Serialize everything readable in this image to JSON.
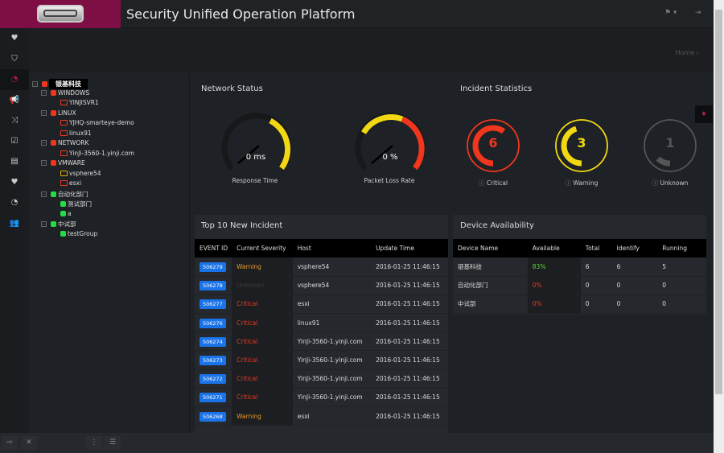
{
  "header": {
    "title": "Security Unified Operation Platform",
    "icons": [
      "language-flag-icon",
      "logout-icon"
    ]
  },
  "breadcrumb": {
    "home": "Home"
  },
  "sidebar": {
    "icons": [
      "heartbeat-icon",
      "shield-icon",
      "dashboard-icon",
      "megaphone-icon",
      "shuffle-icon",
      "calendar-check-icon",
      "report-icon",
      "heartbeat-icon",
      "dashboard-icon",
      "users-icon"
    ],
    "active": 2
  },
  "tree": [
    {
      "label": "银基科技",
      "level": 0,
      "status": "red",
      "kind": "group",
      "selected": true
    },
    {
      "label": "WINDOWS",
      "level": 1,
      "status": "red",
      "kind": "group"
    },
    {
      "label": "YINJISVR1",
      "level": 2,
      "status": "red",
      "kind": "host"
    },
    {
      "label": "LINUX",
      "level": 1,
      "status": "red",
      "kind": "group"
    },
    {
      "label": "YJHQ-smarteye-demo",
      "level": 2,
      "status": "red",
      "kind": "host"
    },
    {
      "label": "linux91",
      "level": 2,
      "status": "red",
      "kind": "host"
    },
    {
      "label": "NETWORK",
      "level": 1,
      "status": "red",
      "kind": "group"
    },
    {
      "label": "YinJi-3560-1.yinji.com",
      "level": 2,
      "status": "red",
      "kind": "host"
    },
    {
      "label": "VMWARE",
      "level": 1,
      "status": "red",
      "kind": "group"
    },
    {
      "label": "vsphere54",
      "level": 2,
      "status": "yellow",
      "kind": "host"
    },
    {
      "label": "esxi",
      "level": 2,
      "status": "red",
      "kind": "host"
    },
    {
      "label": "自动化部门",
      "level": 1,
      "status": "green",
      "kind": "group"
    },
    {
      "label": "测试部门",
      "level": 2,
      "status": "green",
      "kind": "leaf"
    },
    {
      "label": "a",
      "level": 2,
      "status": "green",
      "kind": "leaf"
    },
    {
      "label": "中试部",
      "level": 1,
      "status": "green",
      "kind": "group"
    },
    {
      "label": "testGroup",
      "level": 2,
      "status": "green",
      "kind": "leaf"
    }
  ],
  "network_status": {
    "title": "Network Status",
    "response": {
      "label": "Response Time",
      "value": "0 ms",
      "ticks": [
        "50",
        "100",
        "150",
        "200",
        "250",
        "300"
      ]
    },
    "packet_loss": {
      "label": "Packet Loss Rate",
      "value": "0 %",
      "ticks": [
        "20",
        "40",
        "60",
        "80",
        "100"
      ]
    }
  },
  "incident_stats": {
    "title": "Incident Statistics",
    "items": [
      {
        "label": "Critical",
        "count": "6",
        "color": "#f0371e"
      },
      {
        "label": "Warning",
        "count": "3",
        "color": "#f2d813"
      },
      {
        "label": "Unknown",
        "count": "1",
        "color": "#555555"
      }
    ]
  },
  "top10": {
    "title": "Top 10 New Incident",
    "columns": [
      "EVENT ID",
      "Current Severity",
      "Host",
      "Update Time"
    ],
    "rows": [
      [
        "506279",
        "Warning",
        "vsphere54",
        "2016-01-25 11:46:15"
      ],
      [
        "506278",
        "Unknown",
        "vsphere54",
        "2016-01-25 11:46:15"
      ],
      [
        "506277",
        "Critical",
        "esxi",
        "2016-01-25 11:46:15"
      ],
      [
        "506276",
        "Critical",
        "linux91",
        "2016-01-25 11:46:15"
      ],
      [
        "506274",
        "Critical",
        "YinJi-3560-1.yinji.com",
        "2016-01-25 11:46:15"
      ],
      [
        "506273",
        "Critical",
        "YinJi-3560-1.yinji.com",
        "2016-01-25 11:46:15"
      ],
      [
        "506272",
        "Critical",
        "YinJi-3560-1.yinji.com",
        "2016-01-25 11:46:15"
      ],
      [
        "506271",
        "Critical",
        "YinJi-3560-1.yinji.com",
        "2016-01-25 11:46:15"
      ],
      [
        "506268",
        "Warning",
        "esxi",
        "2016-01-25 11:46:15"
      ]
    ]
  },
  "device": {
    "title": "Device Availability",
    "columns": [
      "Device Name",
      "Available",
      "Total",
      "Identify",
      "Running"
    ],
    "rows": [
      [
        "银基科技",
        "83%",
        "6",
        "6",
        "5"
      ],
      [
        "自动化部门",
        "0%",
        "0",
        "0",
        "0"
      ],
      [
        "中试部",
        "0%",
        "0",
        "0",
        "0"
      ]
    ]
  },
  "colors": {
    "brand": "#7d0f45",
    "critical": "#f0371e",
    "warning": "#e89a2c",
    "unknown": "#444",
    "ok": "#22dd44",
    "badge": "#1a73e8"
  }
}
